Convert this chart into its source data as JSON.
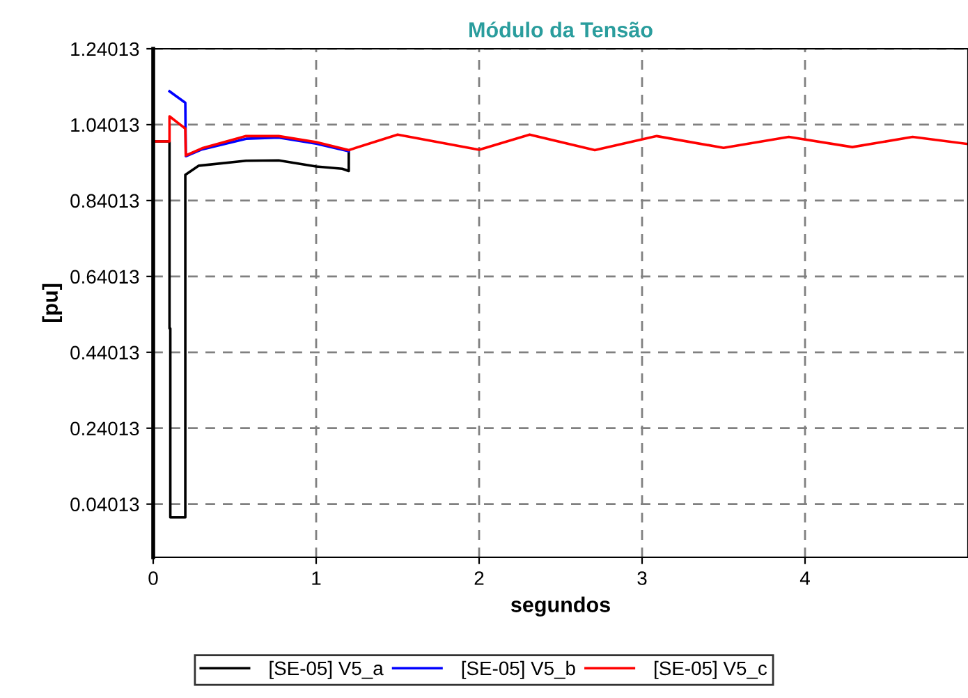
{
  "chart_data": {
    "type": "line",
    "title": "Módulo da Tensão",
    "xlabel": "segundos",
    "ylabel": "[pu]",
    "xlim": [
      0,
      5
    ],
    "ylim": [
      -0.1,
      1.24013
    ],
    "xticks": [
      0,
      1,
      2,
      3,
      4
    ],
    "yticks": [
      0.04013,
      0.24013,
      0.44013,
      0.64013,
      0.84013,
      1.04013,
      1.24013
    ],
    "grid": true,
    "legend": "bottom",
    "line_style": "solid",
    "marker": "none",
    "series": [
      {
        "name": "[SE-05] V5_a",
        "color": "#000000",
        "x": [
          0,
          0.1,
          0.1,
          0.105,
          0.105,
          0.197,
          0.197,
          0.28,
          0.57,
          0.77,
          1.0,
          1.16,
          1.2,
          1.2
        ],
        "values": [
          0.996,
          0.996,
          0.503,
          0.503,
          0.005,
          0.005,
          0.908,
          0.932,
          0.945,
          0.946,
          0.93,
          0.924,
          0.918,
          0.97
        ]
      },
      {
        "name": "[SE-05] V5_b",
        "color": "#0000ff",
        "x": [
          0.1,
          0.197,
          0.2,
          0.3,
          0.57,
          0.77,
          1.0,
          1.2
        ],
        "values": [
          1.128,
          1.098,
          0.957,
          0.975,
          1.003,
          1.006,
          0.99,
          0.97
        ]
      },
      {
        "name": "[SE-05] V5_c",
        "color": "#ff0000",
        "x": [
          0,
          0.1,
          0.1,
          0.197,
          0.2,
          0.3,
          0.57,
          0.77,
          1.0,
          1.2,
          1.5,
          2.0,
          2.31,
          2.71,
          3.09,
          3.5,
          3.9,
          4.29,
          4.66,
          5.0
        ],
        "values": [
          0.996,
          0.996,
          1.062,
          1.03,
          0.959,
          0.978,
          1.01,
          1.01,
          0.994,
          0.973,
          1.014,
          0.974,
          1.014,
          0.973,
          1.01,
          0.979,
          1.008,
          0.981,
          1.008,
          0.989
        ]
      }
    ]
  }
}
